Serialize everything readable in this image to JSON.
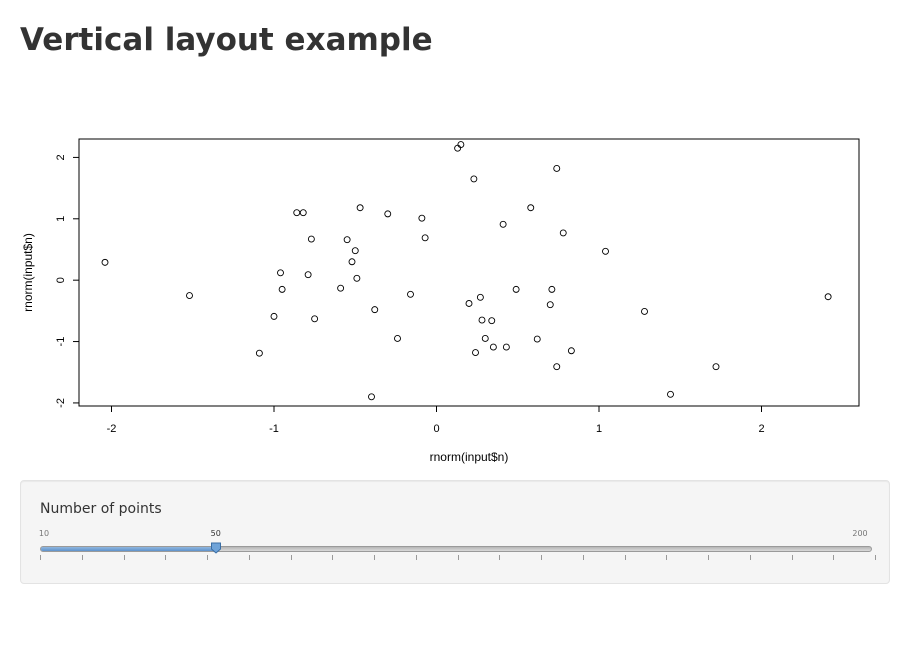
{
  "page": {
    "title": "Vertical layout example"
  },
  "chart_data": {
    "type": "scatter",
    "title": "",
    "xlabel": "rnorm(input$n)",
    "ylabel": "rnorm(input$n)",
    "xlim": [
      -2.2,
      2.6
    ],
    "ylim": [
      -2.05,
      2.3
    ],
    "x_ticks": [
      "-2",
      "-1",
      "0",
      "1",
      "2"
    ],
    "y_ticks": [
      "-2",
      "-1",
      "0",
      "1",
      "2"
    ],
    "grid": false,
    "point_style": "open-circle",
    "points": [
      [
        -2.04,
        0.29
      ],
      [
        -1.52,
        -0.25
      ],
      [
        -1.09,
        -1.19
      ],
      [
        -1.0,
        -0.59
      ],
      [
        -0.96,
        0.12
      ],
      [
        -0.95,
        -0.15
      ],
      [
        -0.86,
        1.1
      ],
      [
        -0.82,
        1.1
      ],
      [
        -0.79,
        0.09
      ],
      [
        -0.77,
        0.67
      ],
      [
        -0.75,
        -0.63
      ],
      [
        -0.59,
        -0.13
      ],
      [
        -0.55,
        0.66
      ],
      [
        -0.52,
        0.3
      ],
      [
        -0.5,
        0.48
      ],
      [
        -0.49,
        0.03
      ],
      [
        -0.47,
        1.18
      ],
      [
        -0.4,
        -1.9
      ],
      [
        -0.38,
        -0.48
      ],
      [
        -0.3,
        1.08
      ],
      [
        -0.24,
        -0.95
      ],
      [
        -0.16,
        -0.23
      ],
      [
        -0.09,
        1.01
      ],
      [
        -0.07,
        0.69
      ],
      [
        0.13,
        2.15
      ],
      [
        0.15,
        2.21
      ],
      [
        0.2,
        -0.38
      ],
      [
        0.23,
        1.65
      ],
      [
        0.24,
        -1.18
      ],
      [
        0.27,
        -0.28
      ],
      [
        0.28,
        -0.65
      ],
      [
        0.3,
        -0.95
      ],
      [
        0.34,
        -0.66
      ],
      [
        0.35,
        -1.09
      ],
      [
        0.41,
        0.91
      ],
      [
        0.43,
        -1.09
      ],
      [
        0.49,
        -0.15
      ],
      [
        0.58,
        1.18
      ],
      [
        0.62,
        -0.96
      ],
      [
        0.7,
        -0.4
      ],
      [
        0.71,
        -0.15
      ],
      [
        0.74,
        -1.41
      ],
      [
        0.74,
        1.82
      ],
      [
        0.78,
        0.77
      ],
      [
        0.83,
        -1.15
      ],
      [
        1.04,
        0.47
      ],
      [
        1.28,
        -0.51
      ],
      [
        1.44,
        -1.86
      ],
      [
        1.72,
        -1.41
      ],
      [
        2.41,
        -0.27
      ]
    ]
  },
  "slider": {
    "label": "Number of points",
    "min_label": "10",
    "max_label": "200",
    "min": 10,
    "max": 200,
    "value": 50,
    "value_label": "50",
    "major_tick_count": 20,
    "accent_color": "#5f93cc"
  }
}
